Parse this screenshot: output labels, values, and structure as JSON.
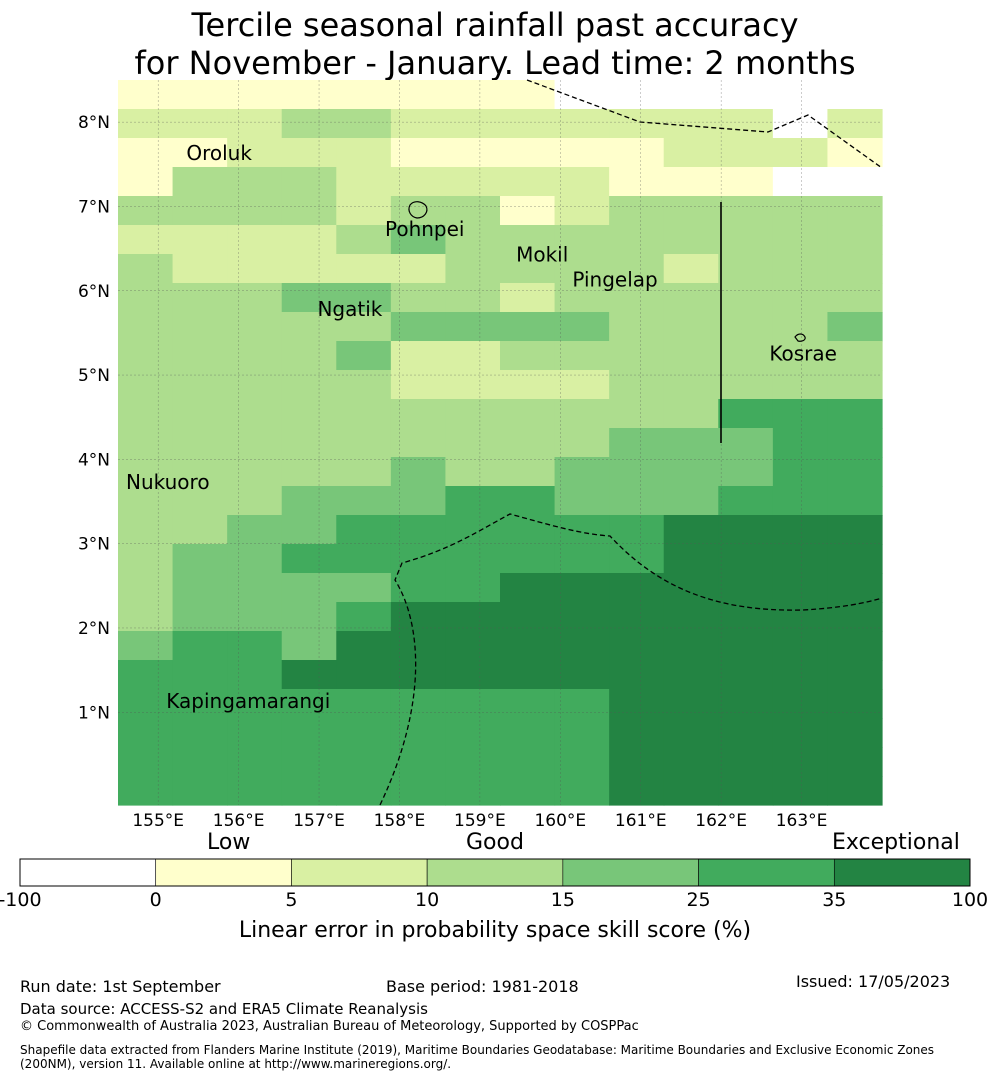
{
  "title": {
    "line1": "Tercile seasonal rainfall past accuracy",
    "line2": "for November - January. Lead time: 2 months"
  },
  "map": {
    "lon_range": [
      154.5,
      164.0
    ],
    "lat_range": [
      -0.1,
      8.5
    ],
    "lon_ticks": [
      155,
      156,
      157,
      158,
      159,
      160,
      161,
      162,
      163
    ],
    "lon_tick_labels": [
      "155°E",
      "156°E",
      "157°E",
      "158°E",
      "159°E",
      "160°E",
      "161°E",
      "162°E",
      "163°E"
    ],
    "lat_ticks": [
      1,
      2,
      3,
      4,
      5,
      6,
      7,
      8
    ],
    "lat_tick_labels": [
      "1°N",
      "2°N",
      "3°N",
      "4°N",
      "5°N",
      "6°N",
      "7°N",
      "8°N"
    ],
    "places": [
      {
        "name": "Oroluk",
        "lon": 155.35,
        "lat": 7.55
      },
      {
        "name": "Pohnpei",
        "lon": 157.82,
        "lat": 6.65
      },
      {
        "name": "Mokil",
        "lon": 159.45,
        "lat": 6.35
      },
      {
        "name": "Pingelap",
        "lon": 160.15,
        "lat": 6.05
      },
      {
        "name": "Ngatik",
        "lon": 156.98,
        "lat": 5.7
      },
      {
        "name": "Kosrae",
        "lon": 162.6,
        "lat": 5.17
      },
      {
        "name": "Nukuoro",
        "lon": 154.6,
        "lat": 3.65
      },
      {
        "name": "Kapingamarangi",
        "lon": 155.1,
        "lat": 1.05
      }
    ],
    "grid_rows": [
      "11111111000000",
      "22233222222202",
      "11222111112221",
      "13332222211100",
      "33332331233333",
      "22223433333333",
      "32222233332333",
      "33344332333333",
      "33333444433334",
      "33334223333333",
      "33333222233333",
      "33333333333555",
      "33333333344455",
      "33333433444455",
      "33344455444555",
      "33445555556666",
      "34455555556666",
      "34444556666666",
      "34445666666666",
      "45546666666666",
      "55566666666666",
      "55555555566666",
      "55555555566666",
      "55555555566666",
      "55555555566666"
    ]
  },
  "colorbar": {
    "colors": [
      "#ffffff",
      "#ffffcc",
      "#d9f0a3",
      "#addd8e",
      "#78c679",
      "#41ab5d",
      "#238443"
    ],
    "tick_labels": [
      "-100",
      "0",
      "5",
      "10",
      "15",
      "25",
      "35",
      "100"
    ],
    "category_labels": [
      "Low",
      "Good",
      "Exceptional"
    ],
    "label": "Linear error in probability space skill score (%)"
  },
  "footer": {
    "run_date": "Run date: 1st September",
    "base_period": "Base period: 1981-2018",
    "issued": "Issued: 17/05/2023",
    "data_source": "Data source: ACCESS-S2 and ERA5 Climate Reanalysis",
    "copyright": "© Commonwealth of Australia 2023, Australian Bureau of Meteorology, Supported by COSPPac",
    "shapefile": "Shapefile data extracted from Flanders Marine Institute (2019), Maritime Boundaries Geodatabase: Maritime Boundaries and Exclusive Economic Zones (200NM), version 11. Available online at http://www.marineregions.org/."
  }
}
